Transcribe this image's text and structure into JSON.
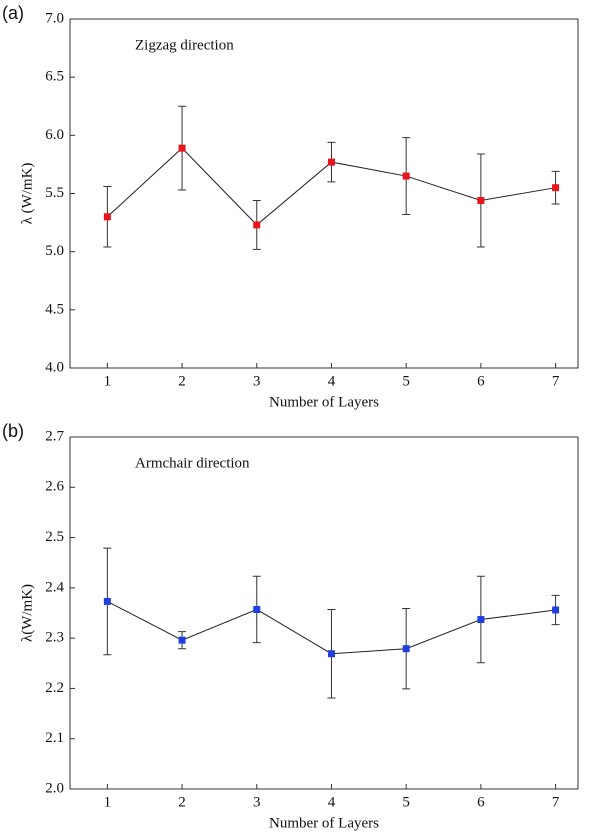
{
  "chart_data": [
    {
      "type": "line",
      "panel_label": "(a)",
      "annotation": "Zigzag direction",
      "xlabel": "Number of Layers",
      "ylabel": "λ (W/mK)",
      "x": [
        1,
        2,
        3,
        4,
        5,
        6,
        7
      ],
      "values": [
        5.3,
        5.89,
        5.23,
        5.77,
        5.65,
        5.44,
        5.55
      ],
      "errors": [
        0.26,
        0.36,
        0.21,
        0.17,
        0.33,
        0.4,
        0.14
      ],
      "color": "#e8141b",
      "xlim": [
        0.5,
        7.3
      ],
      "xticks": [
        1,
        2,
        3,
        4,
        5,
        6,
        7
      ],
      "ylim": [
        4,
        7
      ],
      "yticks": [
        {
          "value": 4,
          "label": "4.0"
        },
        4.5,
        {
          "value": 5,
          "label": "5.0"
        },
        5.5,
        {
          "value": 6,
          "label": "6.0"
        },
        6.5,
        {
          "value": 7,
          "label": "7.0"
        }
      ]
    },
    {
      "type": "line",
      "panel_label": "(b)",
      "annotation": "Armchair direction",
      "xlabel": "Number of Layers",
      "ylabel": "λ(W/mK)",
      "x": [
        1,
        2,
        3,
        4,
        5,
        6,
        7
      ],
      "values": [
        2.373,
        2.296,
        2.357,
        2.269,
        2.279,
        2.337,
        2.356
      ],
      "errors": [
        0.106,
        0.017,
        0.066,
        0.088,
        0.08,
        0.086,
        0.029
      ],
      "color": "#1f3fe0",
      "xlim": [
        0.5,
        7.3
      ],
      "xticks": [
        1,
        2,
        3,
        4,
        5,
        6,
        7
      ],
      "ylim": [
        2,
        2.7
      ],
      "yticks": [
        {
          "value": 2,
          "label": "2.0"
        },
        2.1,
        2.2,
        2.3,
        2.4,
        2.5,
        2.6,
        2.7
      ]
    }
  ]
}
